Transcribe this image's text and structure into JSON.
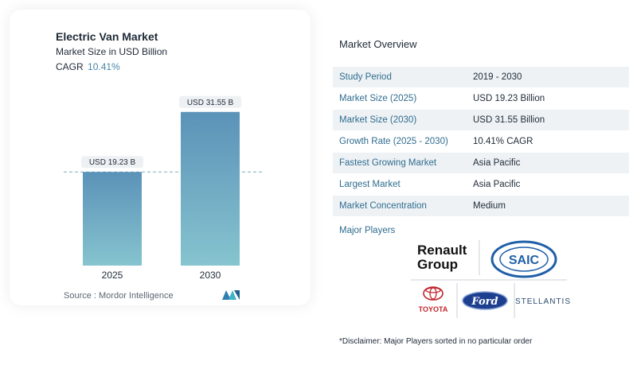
{
  "header": {
    "title": "Electric Van Market",
    "subtitle": "Market Size in USD Billion",
    "cagr_label": "CAGR",
    "cagr_value": "10.41%"
  },
  "chart_data": {
    "type": "bar",
    "categories": [
      "2025",
      "2030"
    ],
    "values": [
      19.23,
      31.55
    ],
    "value_labels": [
      "USD 19.23 B",
      "USD 31.55 B"
    ],
    "title": "Electric Van Market",
    "ylabel": "Market Size in USD Billion",
    "ylim": [
      0,
      32
    ],
    "grid": false,
    "reference_line": 19.23,
    "colors": {
      "bar_top": "#5b92b8",
      "bar_bottom": "#86c4cf",
      "label_bg": "#eef1f4",
      "dashed": "#7ea7be"
    }
  },
  "footer": {
    "source": "Source :  Mordor Intelligence",
    "logo_icon": "mordor-intelligence-logo-icon"
  },
  "overview": {
    "title": "Market Overview",
    "rows": [
      {
        "key": "Study Period",
        "value": "2019 - 2030"
      },
      {
        "key": "Market Size (2025)",
        "value": "USD 19.23 Billion"
      },
      {
        "key": "Market Size (2030)",
        "value": "USD 31.55 Billion"
      },
      {
        "key": "Growth Rate (2025 - 2030)",
        "value": "10.41% CAGR"
      },
      {
        "key": "Fastest Growing Market",
        "value": "Asia Pacific"
      },
      {
        "key": "Largest Market",
        "value": "Asia Pacific"
      },
      {
        "key": "Market Concentration",
        "value": "Medium"
      }
    ],
    "major_players_label": "Major Players",
    "players": [
      "Renault Group",
      "SAIC",
      "TOYOTA",
      "Ford",
      "STELLANTIS"
    ],
    "disclaimer": "*Disclaimer: Major Players sorted in no particular order"
  }
}
